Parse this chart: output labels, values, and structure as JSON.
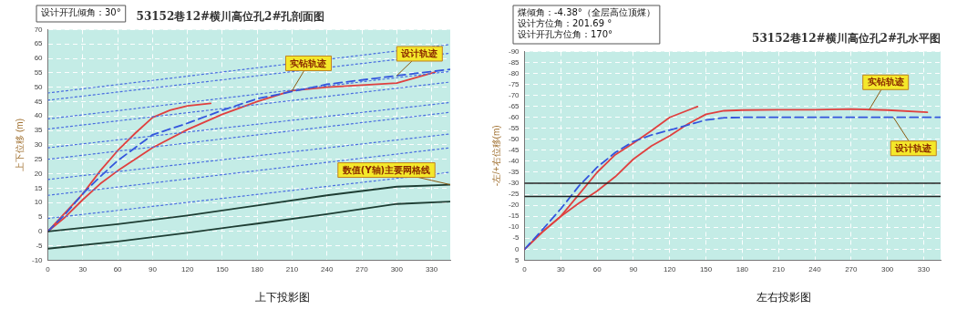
{
  "chart_data": [
    {
      "type": "line",
      "title": "53152巷12#横川高位孔2#孔剖面图",
      "ylabel": "上下位移 (m)",
      "xlim": [
        0,
        346
      ],
      "xticks": [
        0,
        30,
        60,
        90,
        120,
        150,
        180,
        210,
        240,
        270,
        300,
        330
      ],
      "ylim": [
        -10,
        70
      ],
      "yticks": [
        -10,
        -5,
        0,
        5,
        10,
        15,
        20,
        25,
        30,
        35,
        40,
        45,
        50,
        55,
        60,
        65,
        70
      ],
      "grid": true,
      "series": [
        {
          "color": "#4a6ee0",
          "line_style": "dotted",
          "x": [
            0,
            346
          ],
          "values": [
            48,
            64.8
          ]
        },
        {
          "color": "#4a6ee0",
          "line_style": "dotted",
          "x": [
            0,
            346
          ],
          "values": [
            45.5,
            61.8
          ]
        },
        {
          "color": "#4a6ee0",
          "line_style": "dotted",
          "x": [
            0,
            346
          ],
          "values": [
            39,
            55.5
          ]
        },
        {
          "color": "#4a6ee0",
          "line_style": "dotted",
          "x": [
            0,
            346
          ],
          "values": [
            35.5,
            51.8
          ]
        },
        {
          "color": "#4a6ee0",
          "line_style": "dotted",
          "x": [
            0,
            346
          ],
          "values": [
            29,
            44.7
          ]
        },
        {
          "color": "#4a6ee0",
          "line_style": "dotted",
          "x": [
            0,
            346
          ],
          "values": [
            25,
            41.3
          ]
        },
        {
          "color": "#4a6ee0",
          "line_style": "dotted",
          "x": [
            0,
            346
          ],
          "values": [
            18,
            33.8
          ]
        },
        {
          "color": "#4a6ee0",
          "line_style": "dotted",
          "x": [
            0,
            346
          ],
          "values": [
            12.5,
            29
          ]
        },
        {
          "color": "#4a6ee0",
          "line_style": "dotted",
          "x": [
            0,
            346
          ],
          "values": [
            4.5,
            20.5
          ]
        },
        {
          "color": "#1e3d33",
          "line_style": "solid",
          "x": [
            0,
            60,
            120,
            180,
            240,
            300,
            346
          ],
          "values": [
            0,
            2.5,
            5.5,
            9,
            12.5,
            15.5,
            16.2
          ]
        },
        {
          "color": "#1e3d33",
          "line_style": "solid",
          "x": [
            0,
            60,
            120,
            180,
            240,
            300,
            346
          ],
          "values": [
            -6,
            -3.5,
            -0.5,
            2.7,
            6,
            9.5,
            10.3
          ]
        },
        {
          "color": "#3355dd",
          "line_style": "dashed",
          "x": [
            0,
            15,
            30,
            45,
            60,
            90,
            120,
            150,
            180,
            210,
            240,
            270,
            300,
            346
          ],
          "values": [
            0,
            6,
            13,
            19,
            24.5,
            33.5,
            37.5,
            42,
            46,
            48.5,
            51,
            52.5,
            54,
            56.2
          ]
        },
        {
          "color": "#e0403f",
          "line_style": "solid",
          "x": [
            0,
            15,
            30,
            45,
            60,
            75,
            90,
            105,
            120,
            140
          ],
          "values": [
            0,
            6.5,
            13,
            21,
            28,
            34,
            39.5,
            42,
            43.5,
            44.4
          ]
        },
        {
          "color": "#e0403f",
          "line_style": "solid",
          "x": [
            0,
            15,
            30,
            45,
            60,
            90,
            120,
            150,
            180,
            210,
            240,
            270,
            300,
            333
          ],
          "values": [
            0,
            5,
            11,
            16.5,
            21,
            29,
            35.3,
            40.6,
            45,
            48.8,
            50,
            50.7,
            51.4,
            55.2
          ]
        }
      ],
      "annotations": [
        "设计开孔倾角：30°",
        {
          "text": "实钻轨迹",
          "x": 210,
          "y": 48.8
        },
        {
          "text": "设计轨迹",
          "x": 300,
          "y": 54
        },
        {
          "text": "数值(Y轴)主要网格线",
          "x": 346,
          "y": 16.2
        },
        "上下投影图"
      ]
    },
    {
      "type": "line",
      "title": "53152巷12#横川高位孔2#孔水平图",
      "ylabel": "-左/+右位移(m)",
      "xlim": [
        0,
        344
      ],
      "xticks": [
        0,
        30,
        60,
        90,
        120,
        150,
        180,
        210,
        240,
        270,
        300,
        330
      ],
      "ylim": [
        5,
        -90
      ],
      "yticks": [
        5,
        0,
        -5,
        -10,
        -15,
        -20,
        -25,
        -30,
        -35,
        -40,
        -45,
        -50,
        -55,
        -60,
        -65,
        -70,
        -75,
        -80,
        -85,
        -90
      ],
      "grid": true,
      "series": [
        {
          "color": "#3355dd",
          "line_style": "dashed",
          "x": [
            0,
            15,
            30,
            45,
            60,
            75,
            90,
            105,
            120,
            150,
            165,
            180,
            344
          ],
          "values": [
            0,
            -9,
            -18.4,
            -28.8,
            -37.3,
            -44,
            -49,
            -52,
            -54.2,
            -58.8,
            -59.8,
            -60,
            -60
          ]
        },
        {
          "color": "#e0403f",
          "line_style": "solid",
          "x": [
            0,
            15,
            30,
            45,
            60,
            75,
            90,
            105,
            120,
            143
          ],
          "values": [
            0,
            -8,
            -15,
            -25,
            -35,
            -43,
            -48.3,
            -54,
            -60,
            -64.9
          ]
        },
        {
          "color": "#e0403f",
          "line_style": "solid",
          "x": [
            0,
            15,
            30,
            45,
            60,
            75,
            90,
            105,
            120,
            135,
            150,
            165,
            180,
            210,
            240,
            270,
            300,
            333
          ],
          "values": [
            0,
            -8,
            -15,
            -21,
            -26.5,
            -33,
            -41,
            -47,
            -51.6,
            -57,
            -61.4,
            -63,
            -63.3,
            -63.5,
            -63.5,
            -63.8,
            -63.3,
            -62.3
          ]
        }
      ],
      "ref_lines": [
        {
          "axis": "y",
          "value": -30,
          "color": "#222222"
        },
        {
          "axis": "y",
          "value": -24,
          "color": "#222222"
        }
      ],
      "annotations": [
        "煤倾角：-4.38°（全层高位顶煤）",
        "设计方位角：201.69 °",
        "设计开孔方位角：170°",
        {
          "text": "实钻轨迹",
          "x": 285,
          "y": -63.5
        },
        {
          "text": "设计轨迹",
          "x": 305,
          "y": -60
        },
        "左右投影图"
      ]
    }
  ]
}
